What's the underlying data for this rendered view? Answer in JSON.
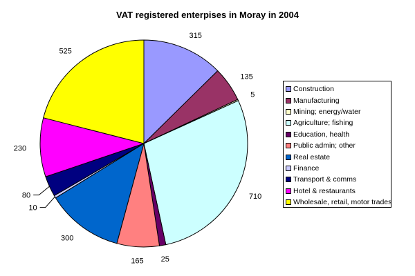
{
  "chart_data": {
    "type": "pie",
    "title": "VAT registered enterpises in Moray in 2004",
    "start": "top",
    "direction": "clockwise",
    "legend_position": "right",
    "categories": [
      "Construction",
      "Manufacturing",
      "Mining; energy/water",
      "Agriculture; fishing",
      "Education, health",
      "Public admin; other",
      "Real estate",
      "Finance",
      "Transport & comms",
      "Hotel & restaurants",
      "Wholesale, retail, motor trades"
    ],
    "values": [
      315,
      135,
      5,
      710,
      25,
      165,
      300,
      10,
      80,
      230,
      525
    ],
    "colors": [
      "#9999FF",
      "#993366",
      "#FFFFCC",
      "#CCFFFF",
      "#660066",
      "#FF8080",
      "#0066CC",
      "#CCCCFF",
      "#000080",
      "#FF00FF",
      "#FFFF00"
    ]
  }
}
